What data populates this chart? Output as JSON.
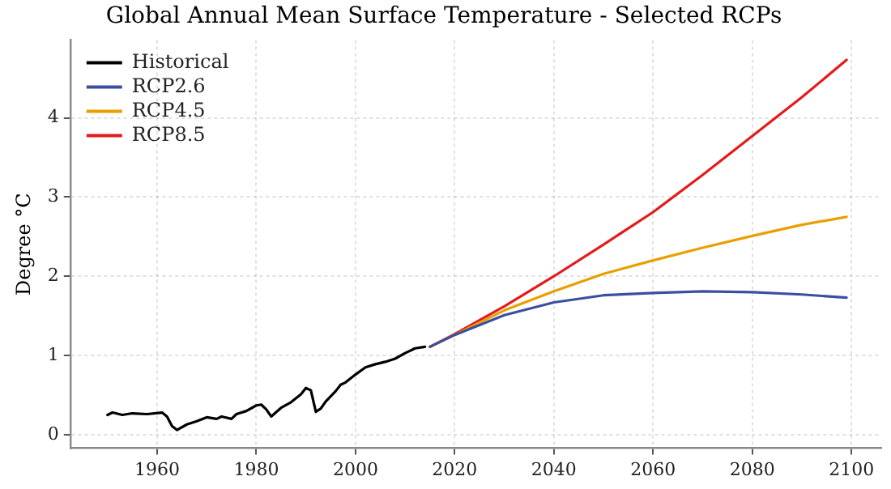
{
  "chart_data": {
    "type": "line",
    "title": "Global Annual Mean Surface Temperature - Selected RCPs",
    "ylabel": "Degree °C",
    "xlim": [
      1942.5,
      2106
    ],
    "xticks": [
      1960,
      1980,
      2000,
      2020,
      2040,
      2060,
      2080,
      2100
    ],
    "ylim": [
      -0.17,
      4.98
    ],
    "yticks": [
      0,
      1,
      2,
      3,
      4
    ],
    "grid": true,
    "legend": "top left",
    "marker": "none",
    "line_style": "solid",
    "series": [
      {
        "name": "Historical",
        "color": "#000000",
        "x": [
          1950,
          1951,
          1953,
          1955,
          1958,
          1961,
          1962,
          1963,
          1964,
          1966,
          1968,
          1970,
          1972,
          1973,
          1975,
          1976,
          1978,
          1980,
          1981,
          1982,
          1983,
          1985,
          1987,
          1989,
          1990,
          1991,
          1992,
          1993,
          1994,
          1996,
          1997,
          1998,
          2000,
          2002,
          2004,
          2006,
          2008,
          2010,
          2012,
          2014
        ],
        "values": [
          0.25,
          0.28,
          0.25,
          0.27,
          0.26,
          0.28,
          0.23,
          0.11,
          0.06,
          0.13,
          0.17,
          0.22,
          0.2,
          0.23,
          0.2,
          0.26,
          0.3,
          0.37,
          0.38,
          0.32,
          0.23,
          0.34,
          0.41,
          0.51,
          0.59,
          0.56,
          0.29,
          0.33,
          0.42,
          0.55,
          0.63,
          0.66,
          0.76,
          0.85,
          0.89,
          0.92,
          0.96,
          1.03,
          1.09,
          1.11
        ]
      },
      {
        "name": "RCP2.6",
        "color": "#3a4fa0",
        "x": [
          2015,
          2020,
          2030,
          2040,
          2050,
          2060,
          2070,
          2080,
          2090,
          2099
        ],
        "values": [
          1.11,
          1.26,
          1.51,
          1.67,
          1.76,
          1.79,
          1.81,
          1.8,
          1.77,
          1.73
        ]
      },
      {
        "name": "RCP4.5",
        "color": "#e8a000",
        "x": [
          2015,
          2020,
          2030,
          2040,
          2050,
          2060,
          2070,
          2080,
          2090,
          2099
        ],
        "values": [
          1.11,
          1.26,
          1.57,
          1.81,
          2.03,
          2.2,
          2.36,
          2.51,
          2.65,
          2.75
        ]
      },
      {
        "name": "RCP8.5",
        "color": "#e41a1c",
        "x": [
          2015,
          2020,
          2030,
          2040,
          2050,
          2060,
          2070,
          2080,
          2090,
          2099
        ],
        "values": [
          1.11,
          1.27,
          1.62,
          2.0,
          2.4,
          2.81,
          3.28,
          3.77,
          4.26,
          4.73
        ]
      }
    ]
  }
}
